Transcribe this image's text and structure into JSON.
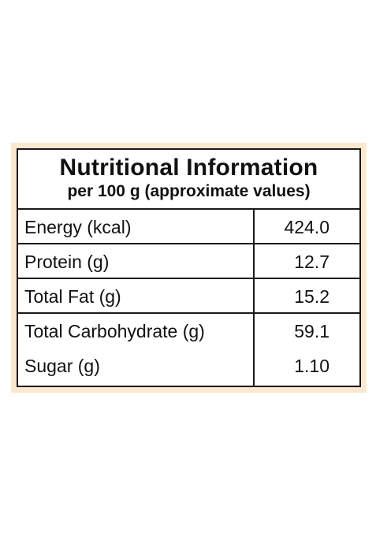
{
  "panel": {
    "title": "Nutritional Information",
    "subtitle": "per 100 g (approximate values)",
    "border_color": "#1a1a1a",
    "frame_color": "#fbe8cf"
  },
  "nutrients": [
    {
      "name": "Energy (kcal)",
      "value": "424.0"
    },
    {
      "name": "Protein (g)",
      "value": "12.7"
    },
    {
      "name": "Total Fat (g)",
      "value": "15.2"
    },
    {
      "name": "Total Carbohydrate (g)",
      "value": "59.1"
    },
    {
      "name": "Sugar (g)",
      "value": "1.10"
    }
  ]
}
